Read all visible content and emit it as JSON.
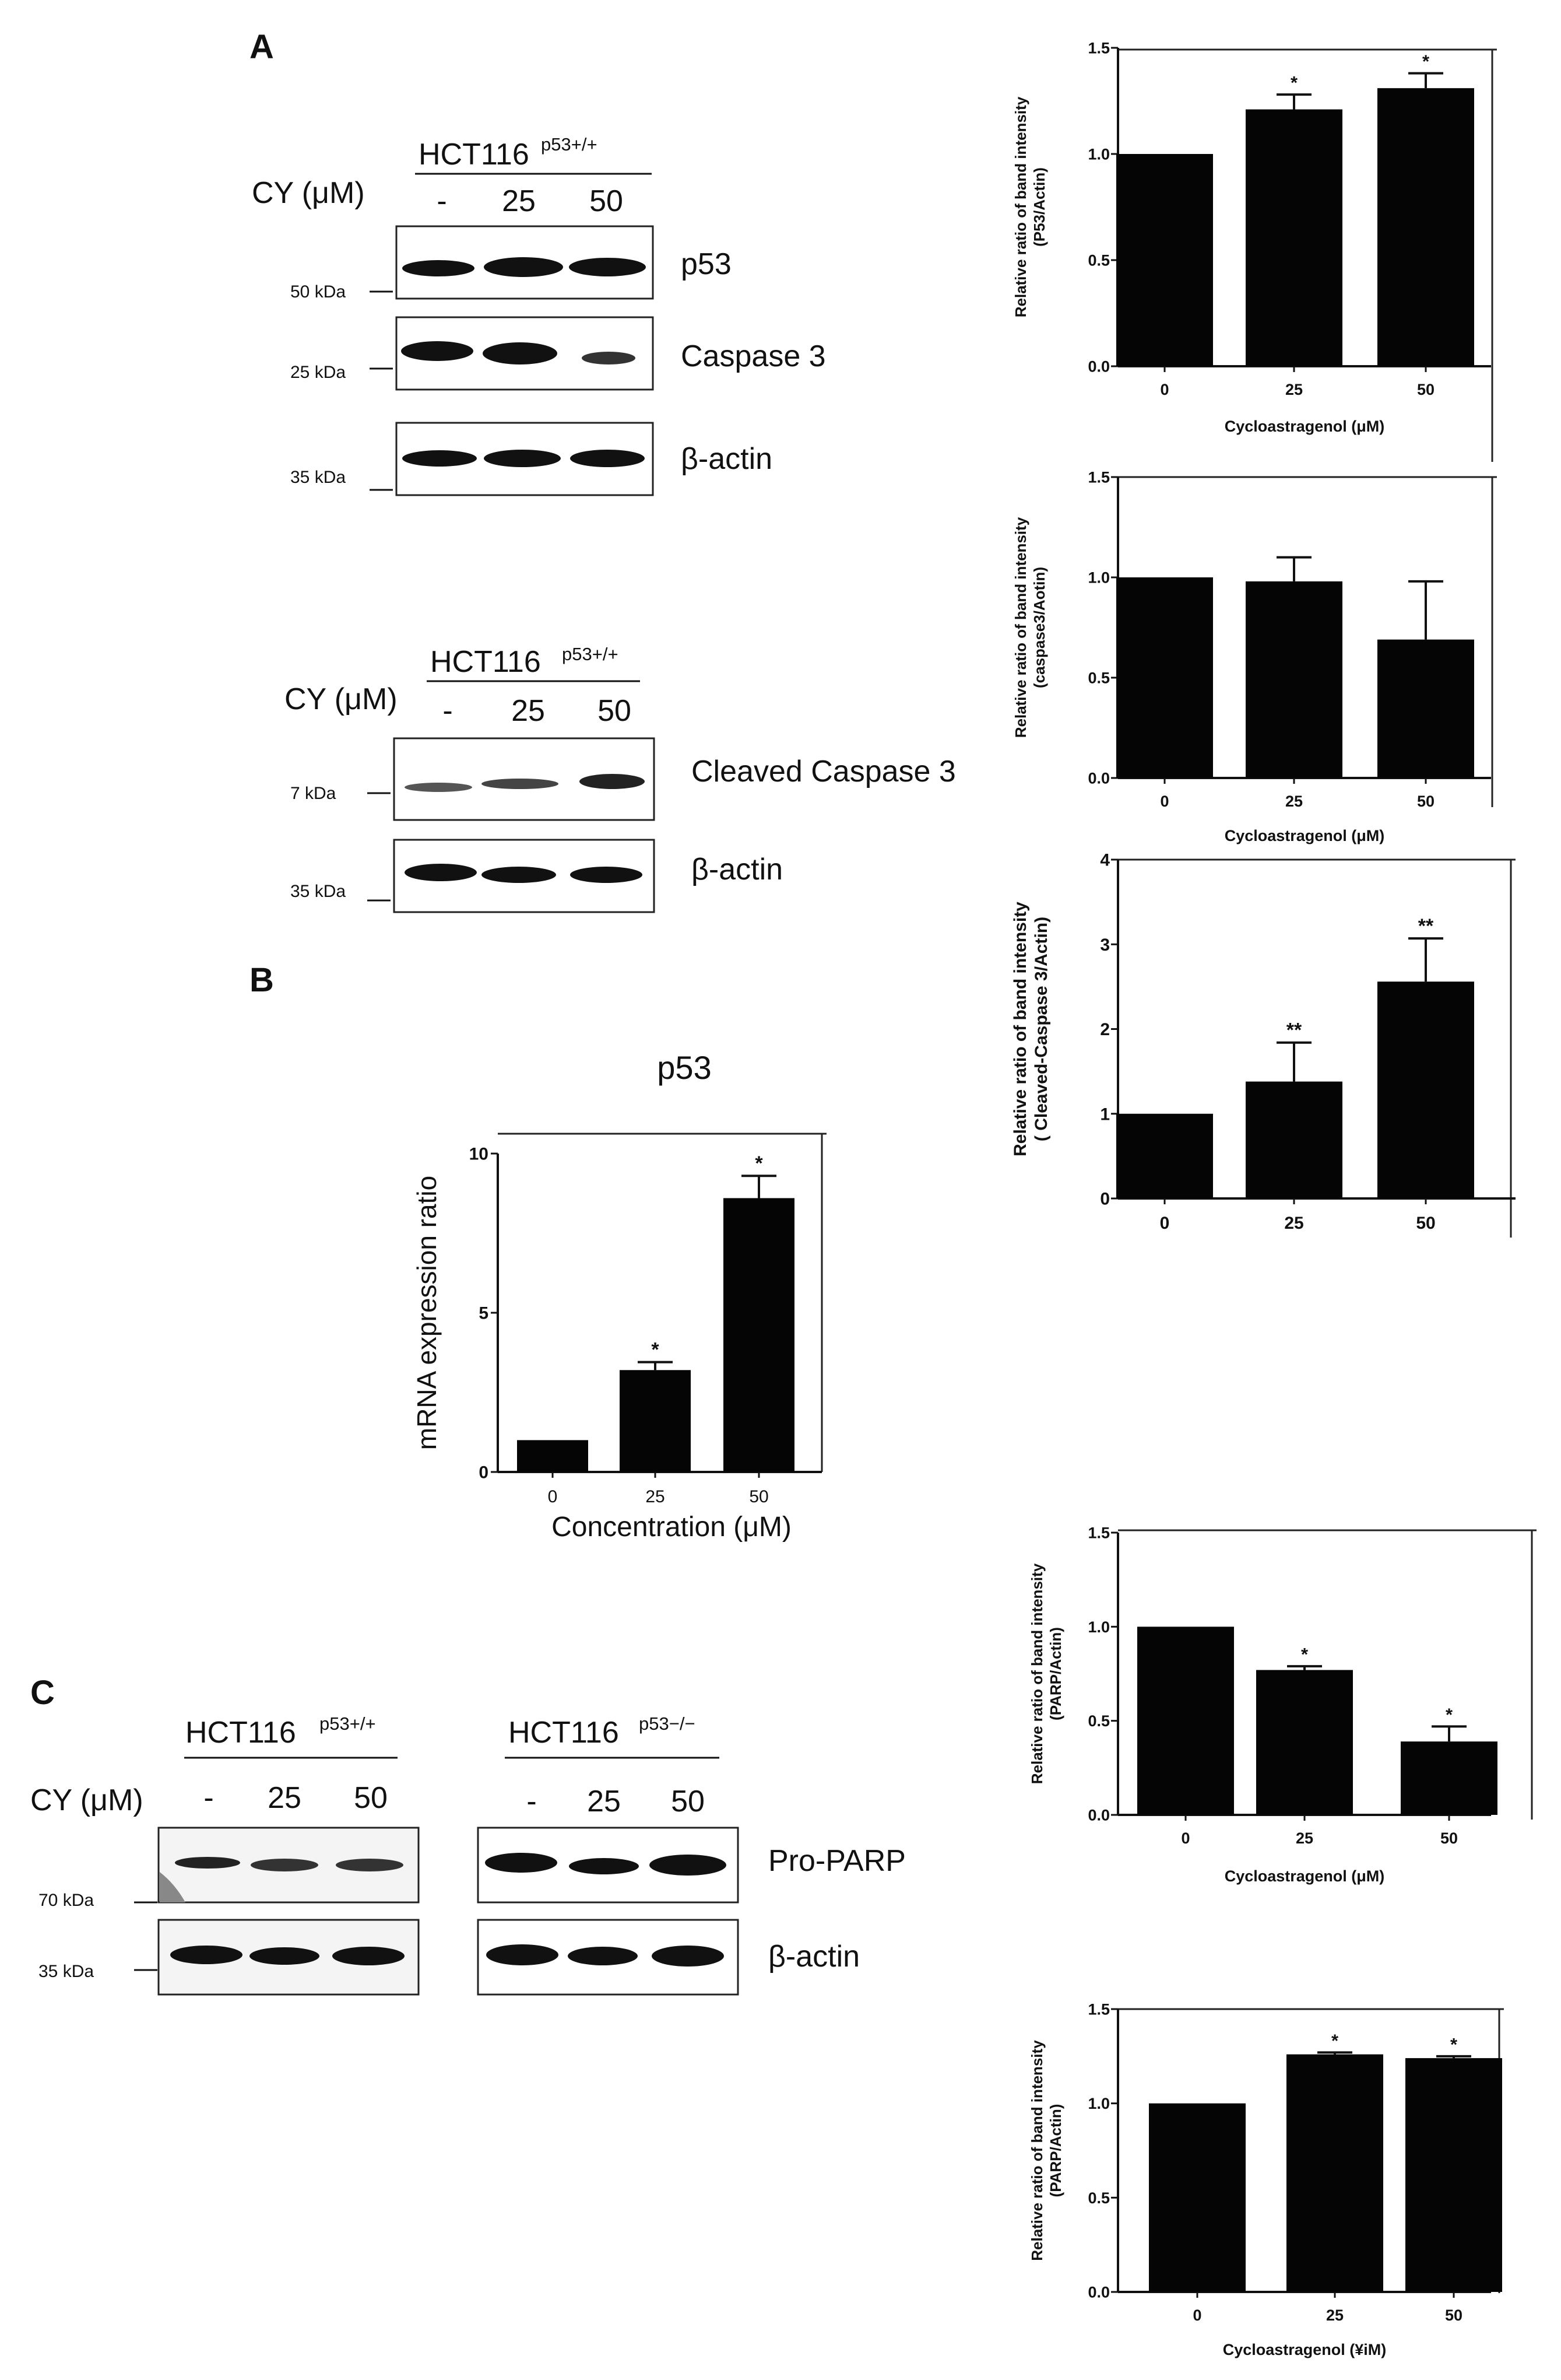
{
  "panel_labels": {
    "a": "A",
    "b": "B",
    "c": "C"
  },
  "blots": [
    {
      "id": "blot-a1",
      "cell_line": "HCT116",
      "genotype": "p53+/+",
      "treatment_label": "CY (μM)",
      "lanes": [
        "-",
        "25",
        "50"
      ],
      "rows": [
        {
          "protein": "p53",
          "marker": "50 kDa"
        },
        {
          "protein": "Caspase 3",
          "marker": "25 kDa"
        },
        {
          "protein": "β-actin",
          "marker": "35 kDa"
        }
      ]
    },
    {
      "id": "blot-a2",
      "cell_line": "HCT116",
      "genotype": "p53+/+",
      "treatment_label": "CY (μM)",
      "lanes": [
        "-",
        "25",
        "50"
      ],
      "rows": [
        {
          "protein": "Cleaved  Caspase 3",
          "marker": "7 kDa"
        },
        {
          "protein": "β-actin",
          "marker": "35 kDa"
        }
      ]
    },
    {
      "id": "blot-c",
      "treatment_label": "CY (μM)",
      "groups": [
        {
          "cell_line": "HCT116",
          "genotype": "p53+/+",
          "lanes": [
            "-",
            "25",
            "50"
          ]
        },
        {
          "cell_line": "HCT116",
          "genotype": "p53−/−",
          "lanes": [
            "-",
            "25",
            "50"
          ]
        }
      ],
      "rows": [
        {
          "protein": "Pro-PARP",
          "marker": "70 kDa"
        },
        {
          "protein": "β-actin",
          "marker": "35 kDa"
        }
      ]
    }
  ],
  "chart_data": [
    {
      "id": "chart-p53-protein",
      "type": "bar",
      "title": "",
      "categories": [
        "0",
        "25",
        "50"
      ],
      "values": [
        1.0,
        1.21,
        1.31
      ],
      "errors": [
        0,
        0.07,
        0.07
      ],
      "significance": [
        "",
        "*",
        "*"
      ],
      "ylim": [
        0,
        1.5
      ],
      "yticks": [
        "0.0",
        "0.5",
        "1.0",
        "1.5"
      ],
      "ylabel": "Relative ratio of band intensity",
      "ylabel2": "(P53/Actin)",
      "xlabel": "Cycloastragenol (μM)",
      "grid": false
    },
    {
      "id": "chart-caspase3",
      "type": "bar",
      "title": "",
      "categories": [
        "0",
        "25",
        "50"
      ],
      "values": [
        1.0,
        0.98,
        0.69
      ],
      "errors": [
        0,
        0.12,
        0.29
      ],
      "significance": [
        "",
        "",
        ""
      ],
      "ylim": [
        0,
        1.5
      ],
      "yticks": [
        "0.0",
        "0.5",
        "1.0",
        "1.5"
      ],
      "ylabel": "Relative ratio of band intensity",
      "ylabel2": "(caspase3/Aotin)",
      "xlabel": "Cycloastragenol (μM)",
      "grid": false
    },
    {
      "id": "chart-cleaved-caspase3",
      "type": "bar",
      "title": "",
      "categories": [
        "0",
        "25",
        "50"
      ],
      "values": [
        1.0,
        1.38,
        2.56
      ],
      "errors": [
        0,
        0.46,
        0.51
      ],
      "significance": [
        "",
        "**",
        "**"
      ],
      "ylim": [
        0,
        4
      ],
      "yticks": [
        "0",
        "1",
        "2",
        "3",
        "4"
      ],
      "ylabel": "Relative ratio of band intensity",
      "ylabel2": "( Cleaved-Caspase 3/Actin)",
      "xlabel": "",
      "grid": false
    },
    {
      "id": "chart-p53-mrna",
      "type": "bar",
      "title": "p53",
      "categories": [
        "0",
        "25",
        "50"
      ],
      "values": [
        1.0,
        3.2,
        8.6
      ],
      "errors": [
        0,
        0.25,
        0.7
      ],
      "significance": [
        "",
        "*",
        "*"
      ],
      "ylim": [
        0,
        10
      ],
      "yticks": [
        "0",
        "5",
        "10"
      ],
      "ylabel": "mRNA expression ratio",
      "ylabel2": "",
      "xlabel": "Concentration  (μM)",
      "grid": false
    },
    {
      "id": "chart-parp-wt",
      "type": "bar",
      "title": "",
      "categories": [
        "0",
        "25",
        "50"
      ],
      "values": [
        1.0,
        0.77,
        0.39
      ],
      "errors": [
        0,
        0.02,
        0.08
      ],
      "significance": [
        "",
        "*",
        "*"
      ],
      "ylim": [
        0,
        1.5
      ],
      "yticks": [
        "0.0",
        "0.5",
        "1.0",
        "1.5"
      ],
      "ylabel": "Relative ratio of band intensity",
      "ylabel2": "(PARP/Actin)",
      "xlabel": "Cycloastragenol (μM)",
      "grid": false
    },
    {
      "id": "chart-parp-ko",
      "type": "bar",
      "title": "",
      "categories": [
        "0",
        "25",
        "50"
      ],
      "values": [
        1.0,
        1.26,
        1.24
      ],
      "errors": [
        0,
        0.01,
        0.01
      ],
      "significance": [
        "",
        "*",
        "*"
      ],
      "ylim": [
        0,
        1.5
      ],
      "yticks": [
        "0.0",
        "0.5",
        "1.0",
        "1.5"
      ],
      "ylabel": "Relative ratio of band intensity",
      "ylabel2": "(PARP/Actin)",
      "xlabel": "Cycloastragenol (¥iM)",
      "grid": false
    }
  ]
}
